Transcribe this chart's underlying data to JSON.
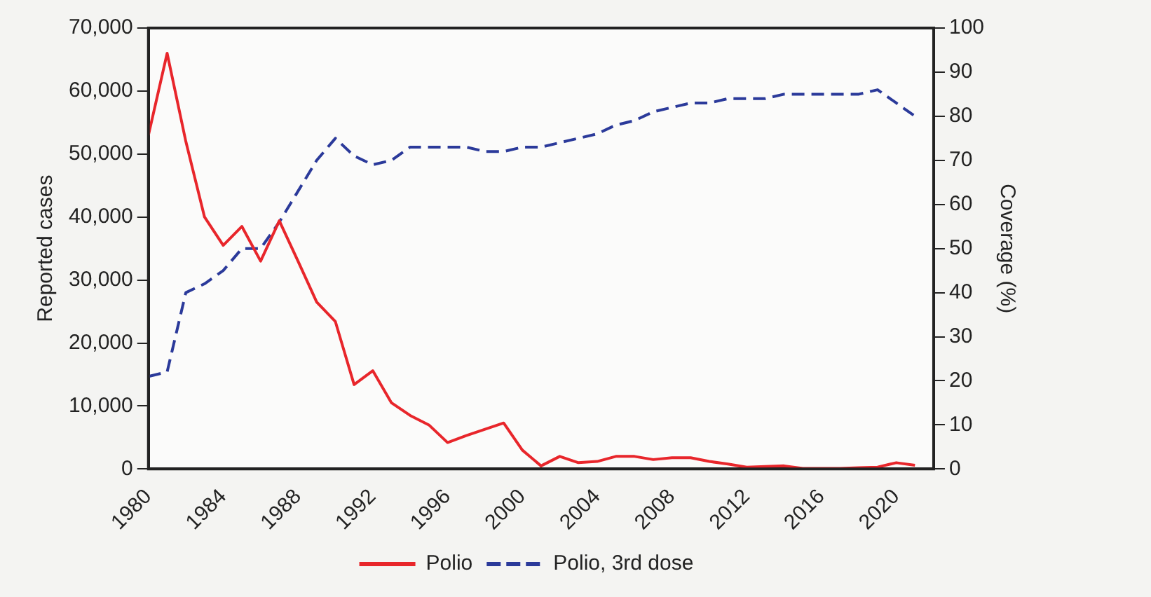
{
  "chart_data": {
    "type": "line",
    "ylabel": "Reported cases",
    "y2label": "Coverage (%)",
    "x": [
      1980,
      1981,
      1982,
      1983,
      1984,
      1985,
      1986,
      1987,
      1988,
      1989,
      1990,
      1991,
      1992,
      1993,
      1994,
      1995,
      1996,
      1997,
      1998,
      1999,
      2000,
      2001,
      2002,
      2003,
      2004,
      2005,
      2006,
      2007,
      2008,
      2009,
      2010,
      2011,
      2012,
      2013,
      2014,
      2015,
      2016,
      2017,
      2018,
      2019,
      2020,
      2021
    ],
    "series": [
      {
        "name": "Polio",
        "color": "#e8262b",
        "line_style": "solid",
        "values": [
          53000,
          66000,
          52000,
          40000,
          35500,
          38500,
          33000,
          39400,
          33000,
          26500,
          23400,
          13400,
          15600,
          10500,
          8500,
          7000,
          4200,
          5300,
          6300,
          7300,
          3000,
          500,
          2000,
          1000,
          1200,
          2000,
          2000,
          1500,
          1800,
          1800,
          1200,
          800,
          300,
          400,
          500,
          100,
          100,
          100,
          200,
          300,
          1000,
          600
        ]
      },
      {
        "name": "Polio, 3rd dose",
        "color": "#2b3a9a",
        "line_style": "dashed",
        "axis": "y2",
        "values": [
          21,
          22,
          40,
          42,
          45,
          50,
          50,
          56,
          63,
          70,
          75,
          71,
          69,
          70,
          73,
          73,
          73,
          73,
          72,
          72,
          73,
          73,
          74,
          75,
          76,
          78,
          79,
          81,
          82,
          83,
          83,
          84,
          84,
          84,
          85,
          85,
          85,
          85,
          85,
          86,
          83,
          80
        ]
      }
    ],
    "xlim": [
      1980,
      2022
    ],
    "xticks": [
      1980,
      1984,
      1988,
      1992,
      1996,
      2000,
      2004,
      2008,
      2012,
      2016,
      2020
    ],
    "ylim": [
      0,
      70000
    ],
    "yticks": [
      {
        "value": 0,
        "label": "0"
      },
      {
        "value": 10000,
        "label": "10,000"
      },
      {
        "value": 20000,
        "label": "20,000"
      },
      {
        "value": 30000,
        "label": "30,000"
      },
      {
        "value": 40000,
        "label": "40,000"
      },
      {
        "value": 50000,
        "label": "50,000"
      },
      {
        "value": 60000,
        "label": "60,000"
      },
      {
        "value": 70000,
        "label": "70,000"
      }
    ],
    "y2lim": [
      0,
      100
    ],
    "y2ticks": [
      0,
      10,
      20,
      30,
      40,
      50,
      60,
      70,
      80,
      90,
      100
    ],
    "grid": false,
    "legend": "bottom",
    "marker": "none"
  }
}
